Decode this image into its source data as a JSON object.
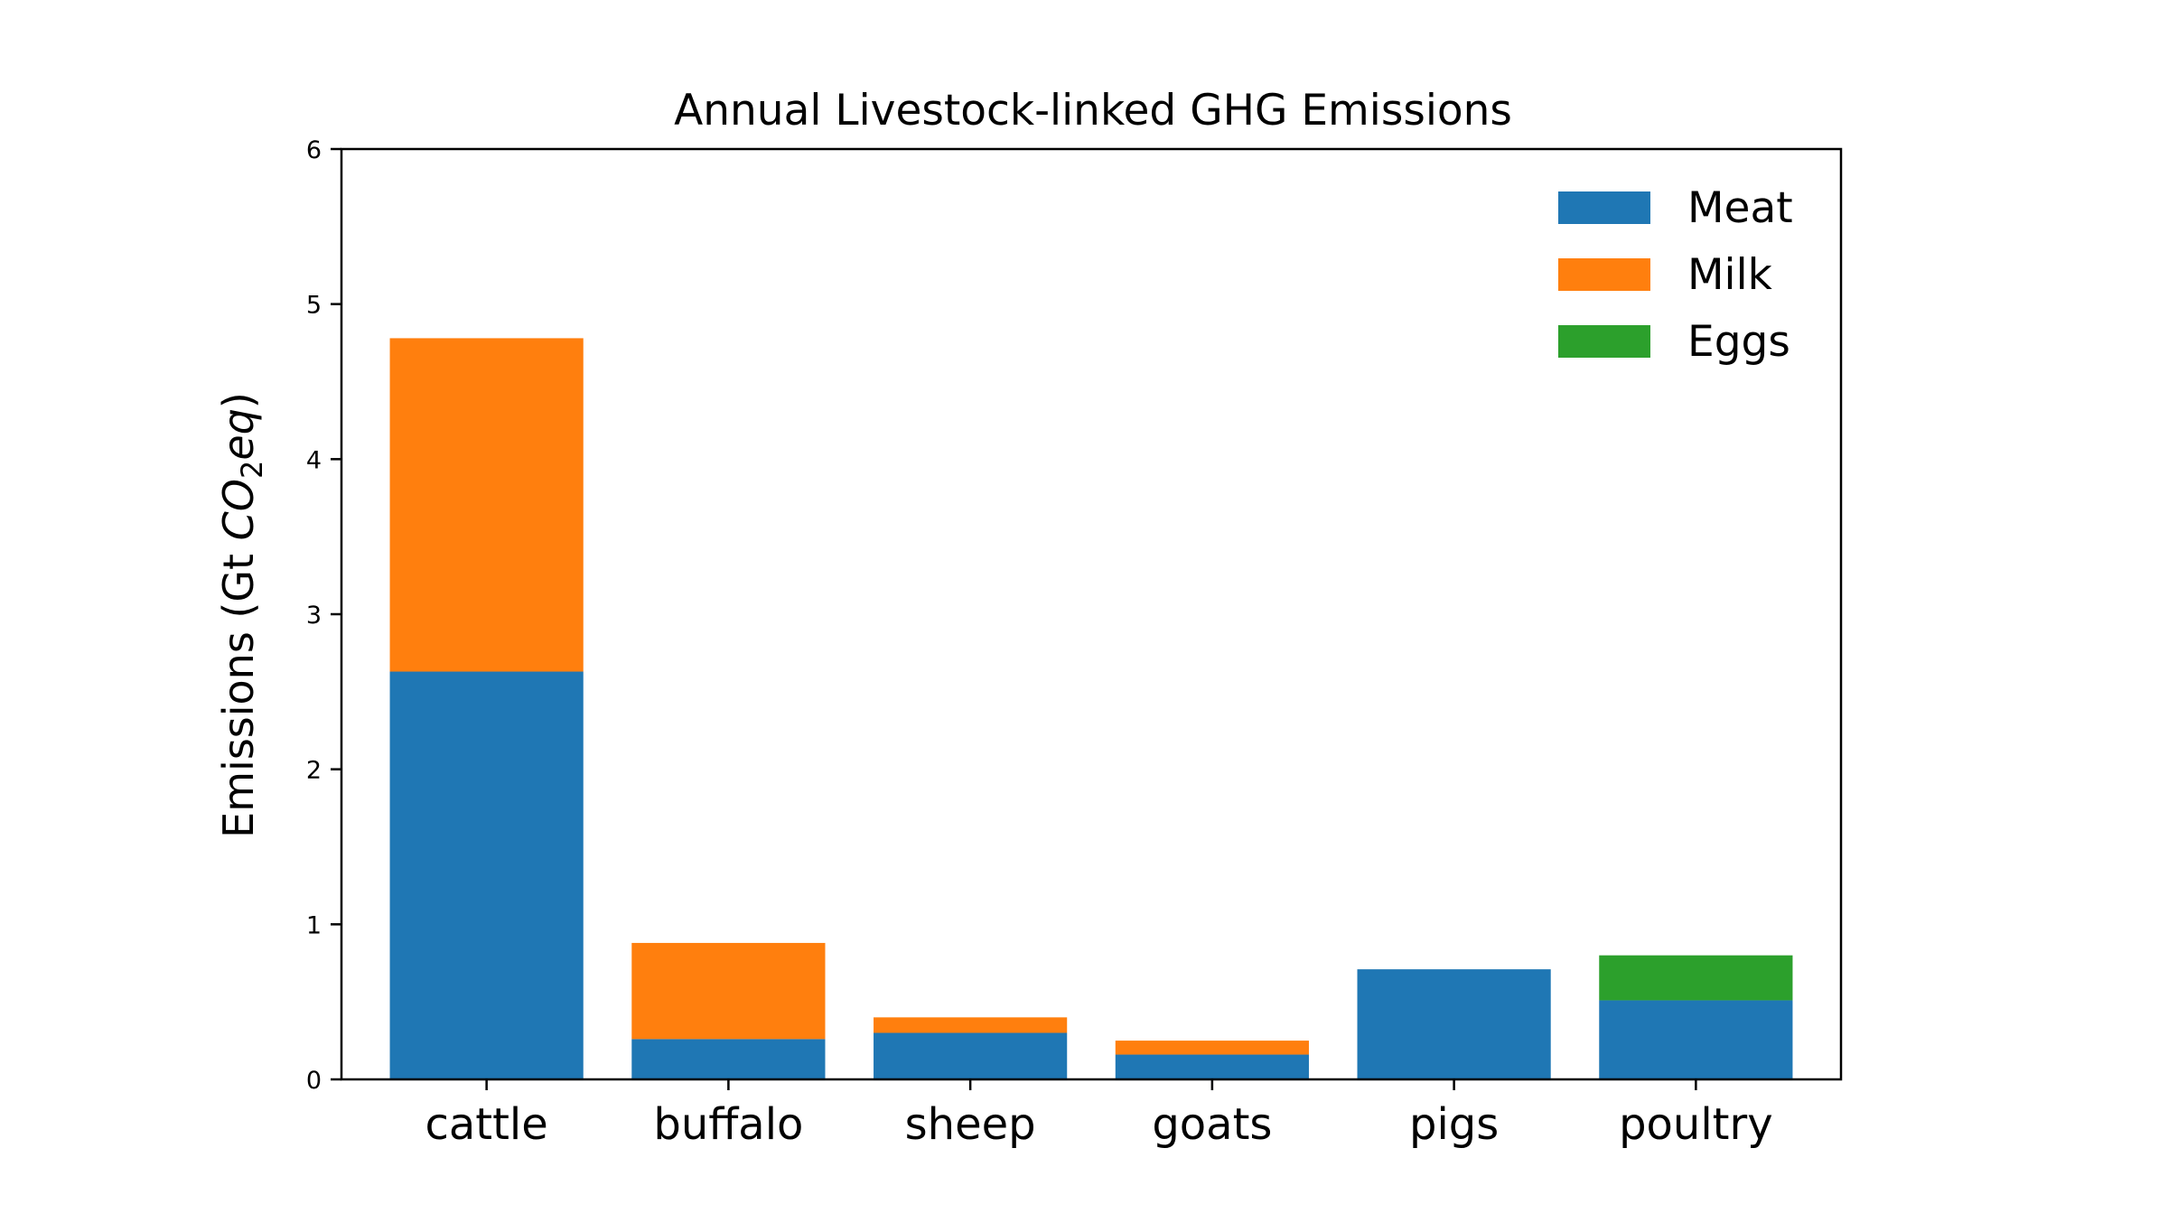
{
  "chart_data": {
    "type": "bar",
    "stacked": true,
    "title": "Annual Livestock-linked GHG Emissions",
    "xlabel": "",
    "ylabel": {
      "prefix": "Emissions (Gt ",
      "math_main": "CO",
      "math_sub": "2",
      "math_tail": "eq",
      "suffix": ")"
    },
    "ylim": [
      0,
      6
    ],
    "yticks": [
      "0",
      "1",
      "2",
      "3",
      "4",
      "5",
      "6"
    ],
    "categories": [
      "cattle",
      "buffalo",
      "sheep",
      "goats",
      "pigs",
      "poultry"
    ],
    "series": [
      {
        "name": "Meat",
        "color": "#1f77b4",
        "values": [
          2.63,
          0.26,
          0.3,
          0.16,
          0.71,
          0.51
        ]
      },
      {
        "name": "Milk",
        "color": "#ff7f0e",
        "values": [
          2.15,
          0.62,
          0.1,
          0.09,
          0,
          0
        ]
      },
      {
        "name": "Eggs",
        "color": "#2ca02c",
        "values": [
          0,
          0,
          0,
          0,
          0,
          0.29
        ]
      }
    ],
    "legend_position": "top-right",
    "grid": false
  }
}
